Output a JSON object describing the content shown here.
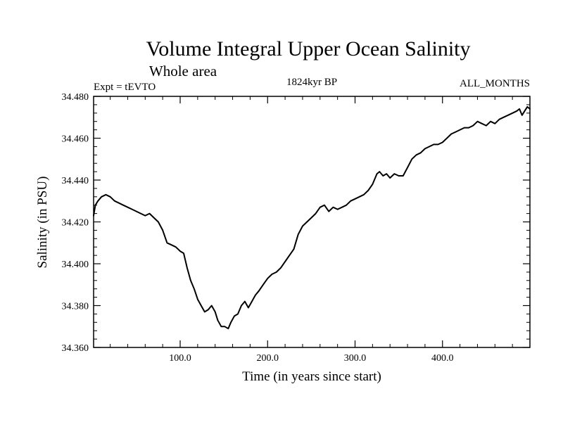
{
  "chart_data": {
    "type": "line",
    "title": "Volume Integral Upper Ocean Salinity",
    "subtitle": "Whole area",
    "experiment_label": "Expt = tEVTO",
    "period_label": "1824kyr BP",
    "months_label": "ALL_MONTHS",
    "xlabel": "Time (in years since start)",
    "ylabel": "Salinity (in PSU)",
    "xlim": [
      1,
      500
    ],
    "ylim": [
      34.36,
      34.48
    ],
    "x_major_ticks": [
      100,
      200,
      300,
      400
    ],
    "x_tick_labels": [
      "100.0",
      "200.0",
      "300.0",
      "400.0"
    ],
    "y_major_ticks": [
      34.36,
      34.38,
      34.4,
      34.42,
      34.44,
      34.46,
      34.48
    ],
    "y_tick_labels": [
      "34.360",
      "34.380",
      "34.400",
      "34.420",
      "34.440",
      "34.460",
      "34.480"
    ],
    "series": [
      {
        "name": "Salinity",
        "color": "#000000",
        "points": [
          [
            1,
            34.423
          ],
          [
            3,
            34.428
          ],
          [
            6,
            34.43
          ],
          [
            10,
            34.432
          ],
          [
            15,
            34.433
          ],
          [
            20,
            34.432
          ],
          [
            25,
            34.43
          ],
          [
            30,
            34.429
          ],
          [
            35,
            34.428
          ],
          [
            40,
            34.427
          ],
          [
            45,
            34.426
          ],
          [
            50,
            34.425
          ],
          [
            55,
            34.424
          ],
          [
            60,
            34.423
          ],
          [
            65,
            34.424
          ],
          [
            70,
            34.422
          ],
          [
            75,
            34.42
          ],
          [
            80,
            34.416
          ],
          [
            85,
            34.41
          ],
          [
            90,
            34.409
          ],
          [
            95,
            34.408
          ],
          [
            100,
            34.406
          ],
          [
            104,
            34.405
          ],
          [
            108,
            34.398
          ],
          [
            112,
            34.392
          ],
          [
            116,
            34.388
          ],
          [
            120,
            34.383
          ],
          [
            124,
            34.38
          ],
          [
            128,
            34.377
          ],
          [
            132,
            34.378
          ],
          [
            136,
            34.38
          ],
          [
            140,
            34.377
          ],
          [
            143,
            34.373
          ],
          [
            147,
            34.37
          ],
          [
            151,
            34.37
          ],
          [
            155,
            34.369
          ],
          [
            158,
            34.372
          ],
          [
            162,
            34.375
          ],
          [
            166,
            34.376
          ],
          [
            170,
            34.38
          ],
          [
            174,
            34.382
          ],
          [
            178,
            34.379
          ],
          [
            182,
            34.382
          ],
          [
            186,
            34.385
          ],
          [
            190,
            34.387
          ],
          [
            195,
            34.39
          ],
          [
            200,
            34.393
          ],
          [
            205,
            34.395
          ],
          [
            210,
            34.396
          ],
          [
            215,
            34.398
          ],
          [
            220,
            34.401
          ],
          [
            225,
            34.404
          ],
          [
            230,
            34.407
          ],
          [
            235,
            34.414
          ],
          [
            240,
            34.418
          ],
          [
            245,
            34.42
          ],
          [
            250,
            34.422
          ],
          [
            255,
            34.424
          ],
          [
            260,
            34.427
          ],
          [
            265,
            34.428
          ],
          [
            270,
            34.425
          ],
          [
            275,
            34.427
          ],
          [
            280,
            34.426
          ],
          [
            285,
            34.427
          ],
          [
            290,
            34.428
          ],
          [
            295,
            34.43
          ],
          [
            300,
            34.431
          ],
          [
            305,
            34.432
          ],
          [
            310,
            34.433
          ],
          [
            315,
            34.435
          ],
          [
            320,
            34.438
          ],
          [
            325,
            34.443
          ],
          [
            328,
            34.444
          ],
          [
            332,
            34.442
          ],
          [
            336,
            34.443
          ],
          [
            340,
            34.441
          ],
          [
            345,
            34.443
          ],
          [
            350,
            34.442
          ],
          [
            355,
            34.442
          ],
          [
            360,
            34.446
          ],
          [
            365,
            34.45
          ],
          [
            370,
            34.452
          ],
          [
            375,
            34.453
          ],
          [
            380,
            34.455
          ],
          [
            385,
            34.456
          ],
          [
            390,
            34.457
          ],
          [
            395,
            34.457
          ],
          [
            400,
            34.458
          ],
          [
            405,
            34.46
          ],
          [
            410,
            34.462
          ],
          [
            415,
            34.463
          ],
          [
            420,
            34.464
          ],
          [
            425,
            34.465
          ],
          [
            430,
            34.465
          ],
          [
            435,
            34.466
          ],
          [
            440,
            34.468
          ],
          [
            445,
            34.467
          ],
          [
            450,
            34.466
          ],
          [
            455,
            34.468
          ],
          [
            460,
            34.467
          ],
          [
            465,
            34.469
          ],
          [
            470,
            34.47
          ],
          [
            475,
            34.471
          ],
          [
            480,
            34.472
          ],
          [
            485,
            34.473
          ],
          [
            488,
            34.474
          ],
          [
            491,
            34.471
          ],
          [
            494,
            34.473
          ],
          [
            497,
            34.475
          ],
          [
            500,
            34.474
          ]
        ]
      }
    ]
  }
}
